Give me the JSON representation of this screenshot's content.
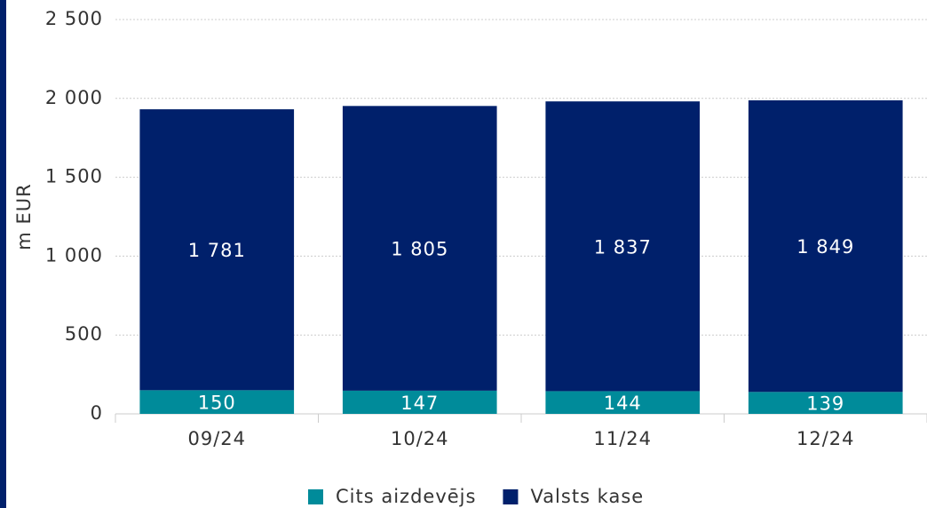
{
  "chart_data": {
    "type": "stacked_bar",
    "y_label": "m EUR",
    "categories": [
      "09/24",
      "10/24",
      "11/24",
      "12/24"
    ],
    "series": [
      {
        "name": "Cits aizdevējs",
        "color": "#008b9a",
        "values": [
          150,
          147,
          144,
          139
        ]
      },
      {
        "name": "Valsts kase",
        "color": "#00206b",
        "values": [
          1781,
          1805,
          1837,
          1849
        ],
        "value_labels": [
          "1 781",
          "1 805",
          "1 837",
          "1 849"
        ]
      }
    ],
    "ylim": [
      0,
      2500
    ],
    "yticks": [
      0,
      500,
      {
        "value": 1000,
        "label": "1 000"
      },
      {
        "value": 1500,
        "label": "1 500"
      },
      {
        "value": 2000,
        "label": "2 000"
      },
      {
        "value": 2500,
        "label": "2 500"
      }
    ],
    "grid": true,
    "legend": "bottom"
  }
}
